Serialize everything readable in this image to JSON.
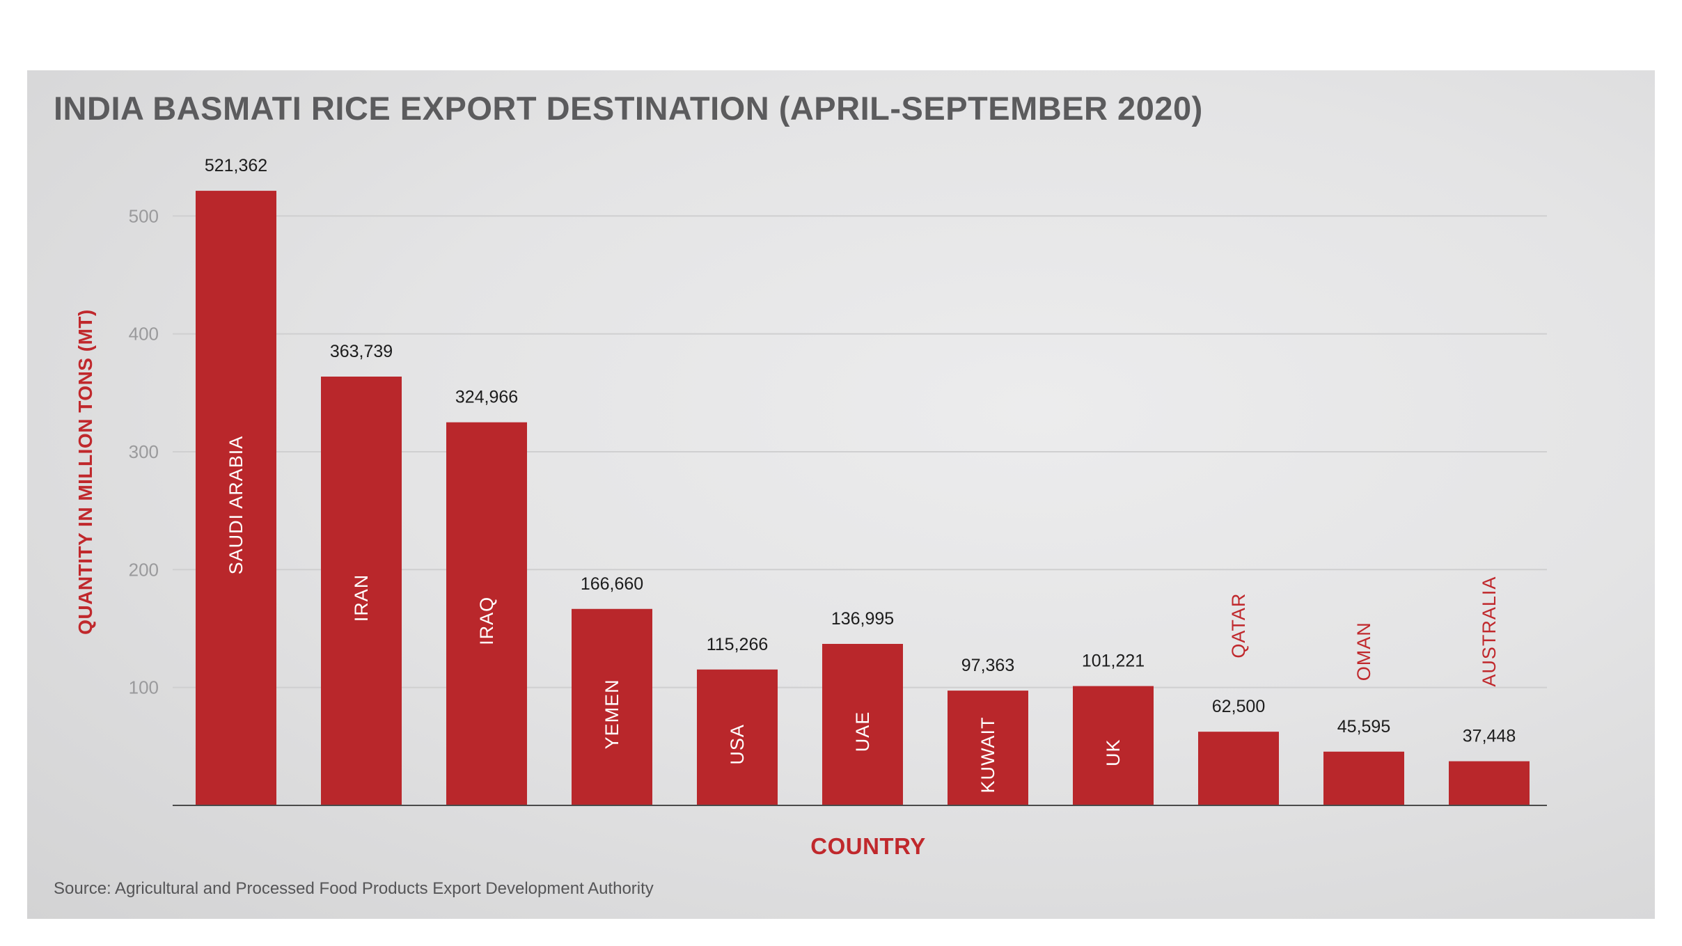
{
  "chart_data": {
    "type": "bar",
    "title": "INDIA BASMATI RICE EXPORT DESTINATION (APRIL-SEPTEMBER 2020)",
    "xlabel": "COUNTRY",
    "ylabel": "QUANTITY IN MILLION TONS (MT)",
    "source": "Source: Agricultural and Processed Food Products Export Development Authority",
    "categories": [
      "SAUDI ARABIA",
      "IRAN",
      "IRAQ",
      "YEMEN",
      "USA",
      "UAE",
      "KUWAIT",
      "UK",
      "QATAR",
      "OMAN",
      "AUSTRALIA"
    ],
    "values": [
      521362,
      363739,
      324966,
      166660,
      115266,
      136995,
      97363,
      101221,
      62500,
      45595,
      37448
    ],
    "data_labels": [
      "521,362",
      "363,739",
      "324,966",
      "166,660",
      "115,266",
      "136,995",
      "97,363",
      "101,221",
      "62,500",
      "45,595",
      "37,448"
    ],
    "yticks": [
      100,
      200,
      300,
      400,
      500
    ],
    "ylim": [
      0,
      500
    ],
    "tick_unit": 1000,
    "grid": true,
    "bar_color": "#b9272b",
    "accent_color": "#c0282c"
  }
}
